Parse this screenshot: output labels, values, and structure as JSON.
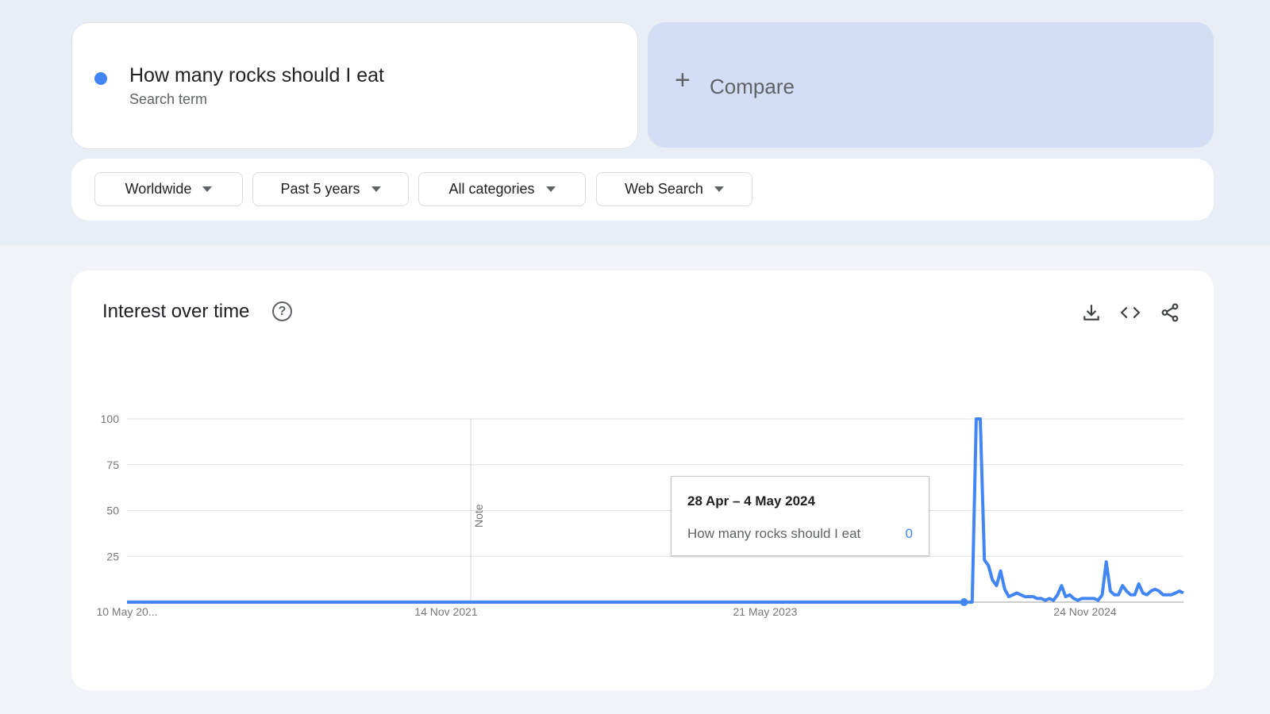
{
  "search_term": {
    "label": "How many rocks should I eat",
    "type": "Search term",
    "color": "#4285f4"
  },
  "compare": {
    "icon": "plus-icon",
    "label": "Compare"
  },
  "filters": [
    {
      "label": "Worldwide"
    },
    {
      "label": "Past 5 years"
    },
    {
      "label": "All categories"
    },
    {
      "label": "Web Search"
    }
  ],
  "panel": {
    "title": "Interest over time",
    "icons": [
      "help-icon",
      "download-icon",
      "embed-code-icon",
      "share-icon"
    ]
  },
  "tooltip": {
    "date": "28 Apr – 4 May 2024",
    "term": "How many rocks should I eat",
    "value": "0"
  },
  "note_label": "Note",
  "chart_data": {
    "type": "line",
    "title": "",
    "xlabel": "",
    "ylabel": "",
    "ylim": [
      0,
      100
    ],
    "yticks": [
      "25",
      "50",
      "75",
      "100"
    ],
    "xticks": [
      "10 May 20...",
      "14 Nov 2021",
      "21 May 2023",
      "24 Nov 2024"
    ],
    "grid": true,
    "series": [
      {
        "name": "How many rocks should I eat",
        "color": "#4285f4",
        "values": [
          0,
          0,
          0,
          0,
          0,
          0,
          0,
          0,
          0,
          0,
          0,
          0,
          0,
          0,
          0,
          0,
          0,
          0,
          0,
          0,
          0,
          0,
          0,
          0,
          0,
          0,
          0,
          0,
          0,
          0,
          0,
          0,
          0,
          0,
          0,
          0,
          0,
          0,
          0,
          0,
          0,
          0,
          0,
          0,
          0,
          0,
          0,
          0,
          0,
          0,
          0,
          0,
          0,
          0,
          0,
          0,
          0,
          0,
          0,
          0,
          0,
          0,
          0,
          0,
          0,
          0,
          0,
          0,
          0,
          0,
          0,
          0,
          0,
          0,
          0,
          0,
          0,
          0,
          0,
          0,
          0,
          0,
          0,
          0,
          0,
          0,
          0,
          0,
          0,
          0,
          0,
          0,
          0,
          0,
          0,
          0,
          0,
          0,
          0,
          0,
          0,
          0,
          0,
          0,
          0,
          0,
          0,
          0,
          0,
          0,
          0,
          0,
          0,
          0,
          0,
          0,
          0,
          0,
          0,
          0,
          0,
          0,
          0,
          0,
          0,
          0,
          0,
          0,
          0,
          0,
          0,
          0,
          0,
          0,
          0,
          0,
          0,
          0,
          0,
          0,
          0,
          0,
          0,
          0,
          0,
          0,
          0,
          0,
          0,
          0,
          0,
          0,
          0,
          0,
          0,
          0,
          0,
          0,
          0,
          0,
          0,
          0,
          0,
          0,
          0,
          0,
          0,
          0,
          0,
          0,
          0,
          0,
          0,
          0,
          0,
          0,
          0,
          0,
          0,
          0,
          0,
          0,
          0,
          0,
          0,
          0,
          0,
          0,
          0,
          0,
          0,
          0,
          0,
          0,
          0,
          0,
          0,
          0,
          0,
          0,
          0,
          0,
          0,
          0,
          0,
          0,
          0,
          0,
          0,
          100,
          100,
          23,
          20,
          12,
          9,
          17,
          7,
          3,
          4,
          5,
          4,
          3,
          3,
          3,
          2,
          2,
          1,
          2,
          1,
          4,
          9,
          3,
          4,
          2,
          1,
          2,
          2,
          2,
          2,
          1,
          4,
          22,
          6,
          4,
          4,
          9,
          6,
          4,
          4,
          10,
          5,
          4,
          6,
          7,
          6,
          4,
          4,
          4,
          5,
          6,
          5
        ]
      }
    ],
    "highlighted_point": {
      "label": "28 Apr – 4 May 2024",
      "value": 0
    }
  }
}
